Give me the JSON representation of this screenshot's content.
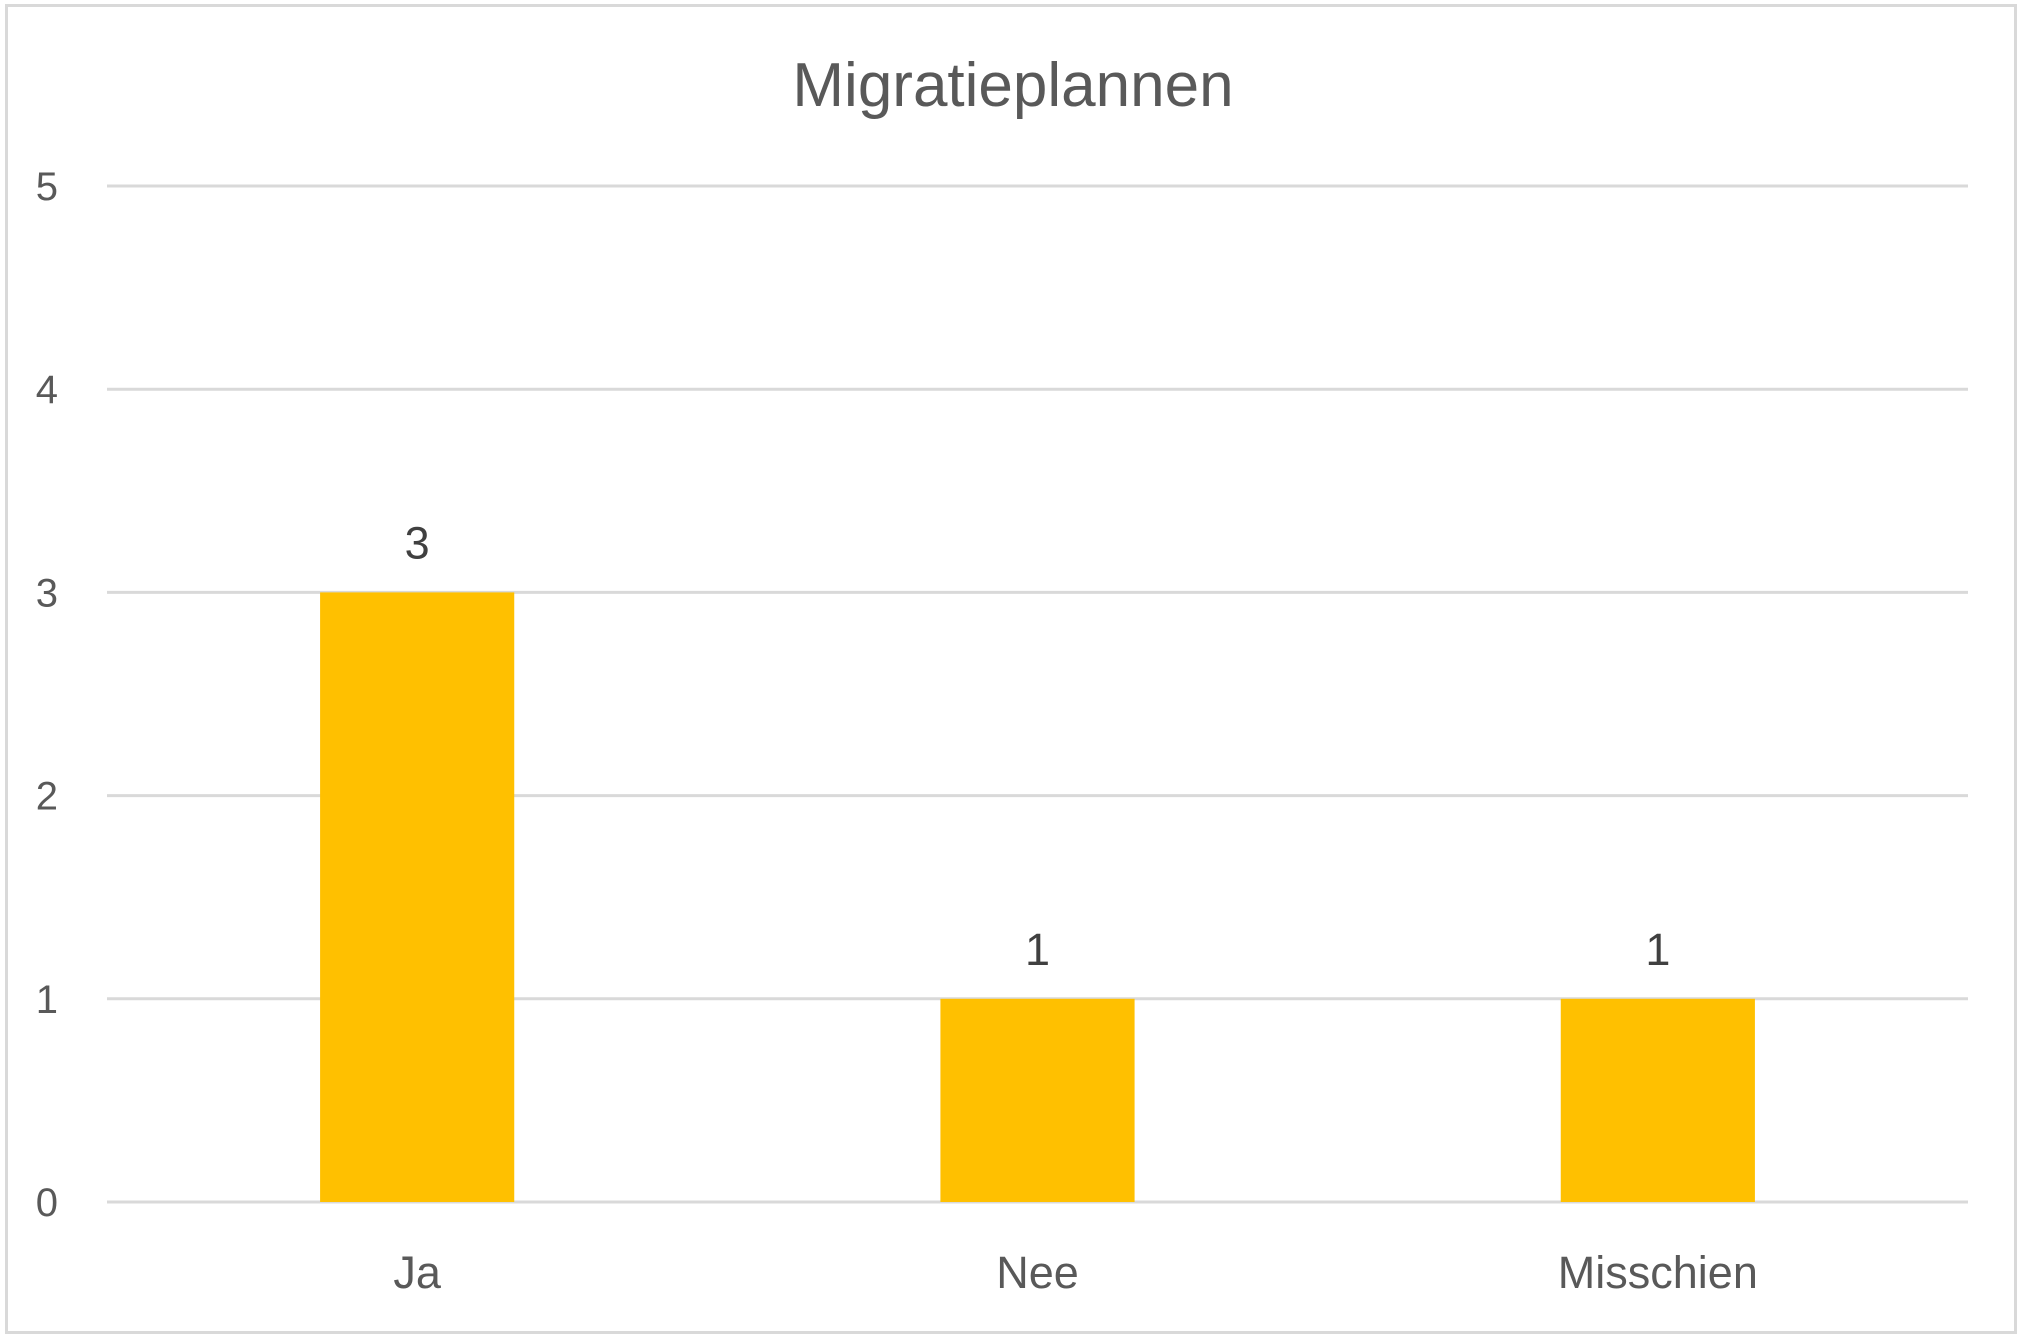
{
  "chart_data": {
    "type": "bar",
    "title": "Migratieplannen",
    "categories": [
      "Ja",
      "Nee",
      "Misschien"
    ],
    "values": [
      3,
      1,
      1
    ],
    "data_labels": [
      "3",
      "1",
      "1"
    ],
    "ylim": [
      0,
      5
    ],
    "yticks": [
      "0",
      "1",
      "2",
      "3",
      "4",
      "5"
    ],
    "xlabel": "",
    "ylabel": "",
    "grid": true,
    "legend": "none",
    "bar_color": "#FFC000",
    "grid_color": "#D9D9D9"
  }
}
